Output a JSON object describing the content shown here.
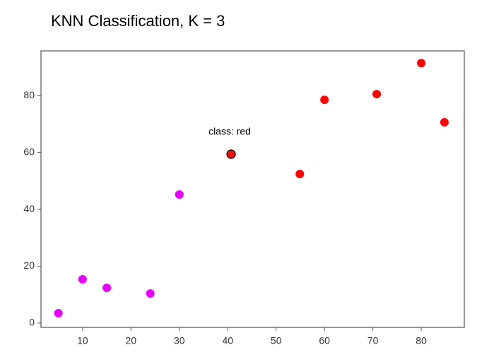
{
  "chart_data": {
    "type": "scatter",
    "title": "KNN Classification, K = 3",
    "xlim": [
      1.4,
      88.9
    ],
    "xticks": [
      10,
      20,
      30,
      40,
      50,
      60,
      70,
      80
    ],
    "ylim": [
      -1.5,
      95.7
    ],
    "yticks": [
      0,
      20,
      40,
      60,
      80
    ],
    "series": [
      {
        "color": "#e600ff",
        "x": [
          5,
          10,
          15,
          24,
          30
        ],
        "values": [
          3.5,
          15.4,
          12.4,
          10.4,
          45.2
        ]
      },
      {
        "color": "#ff0000",
        "x": [
          54.9,
          60,
          70.8,
          80,
          84.8
        ],
        "values": [
          52.4,
          78.5,
          80.5,
          91.4,
          70.6
        ]
      },
      {
        "color": "#ee1111",
        "edge_color": "#000000",
        "x": [
          40.7
        ],
        "values": [
          59.4
        ]
      }
    ],
    "annotations": [
      "class: red"
    ]
  }
}
